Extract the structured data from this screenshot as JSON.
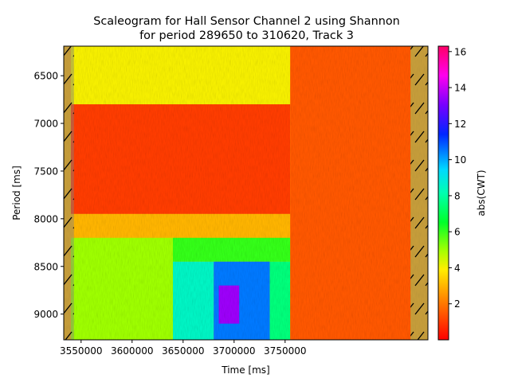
{
  "chart_data": {
    "type": "heatmap",
    "title_lines": [
      "Scaleogram for Hall Sensor Channel 2 using Shannon",
      "for period 289650 to 310620, Track 3"
    ],
    "xlabel": "Time [ms]",
    "ylabel": "Period [ms]",
    "colorbar_label": "abs(CWT)",
    "xlim": [
      3533000,
      3890000
    ],
    "ylim": [
      9270,
      6190
    ],
    "y_inverted": true,
    "x_ticks": [
      3550000,
      3600000,
      3650000,
      3700000,
      3750000
    ],
    "x_tick_labels": [
      "3550000",
      "3600000",
      "3650000",
      "3700000",
      "3750000"
    ],
    "y_ticks": [
      6500,
      7000,
      7500,
      8000,
      8500,
      9000
    ],
    "y_tick_labels": [
      "6500",
      "7000",
      "7500",
      "8000",
      "8500",
      "9000"
    ],
    "colorbar_range": [
      0,
      16.3
    ],
    "colorbar_ticks": [
      2,
      4,
      6,
      8,
      10,
      12,
      14,
      16
    ],
    "colorbar_tick_labels": [
      "2",
      "4",
      "6",
      "8",
      "10",
      "12",
      "14",
      "16"
    ],
    "colormap": "gist_rainbow_r",
    "cone_of_influence": {
      "hatched": true,
      "left_edge_x": 3543000,
      "right_edge_x": 3873000
    },
    "grid": false,
    "regions": [
      {
        "x_range": [
          3540000,
          3755000
        ],
        "y_range": [
          6190,
          6800
        ],
        "abs_cwt": 4.0
      },
      {
        "x_range": [
          3540000,
          3755000
        ],
        "y_range": [
          6800,
          7950
        ],
        "abs_cwt": 1.0
      },
      {
        "x_range": [
          3540000,
          3755000
        ],
        "y_range": [
          7950,
          8200
        ],
        "abs_cwt": 3.0
      },
      {
        "x_range": [
          3540000,
          3640000
        ],
        "y_range": [
          8200,
          9270
        ],
        "abs_cwt": 5.0
      },
      {
        "x_range": [
          3640000,
          3755000
        ],
        "y_range": [
          8200,
          8450
        ],
        "abs_cwt": 6.0
      },
      {
        "x_range": [
          3640000,
          3680000
        ],
        "y_range": [
          8450,
          9270
        ],
        "abs_cwt": 8.5
      },
      {
        "x_range": [
          3680000,
          3735000
        ],
        "y_range": [
          8450,
          9270
        ],
        "abs_cwt": 10.5
      },
      {
        "x_range": [
          3685000,
          3705000
        ],
        "y_range": [
          8700,
          9100
        ],
        "abs_cwt": 13.5
      },
      {
        "x_range": [
          3735000,
          3755000
        ],
        "y_range": [
          8450,
          9270
        ],
        "abs_cwt": 7.5
      },
      {
        "x_range": [
          3755000,
          3873000
        ],
        "y_range": [
          6190,
          9270
        ],
        "abs_cwt": 1.5
      }
    ]
  }
}
